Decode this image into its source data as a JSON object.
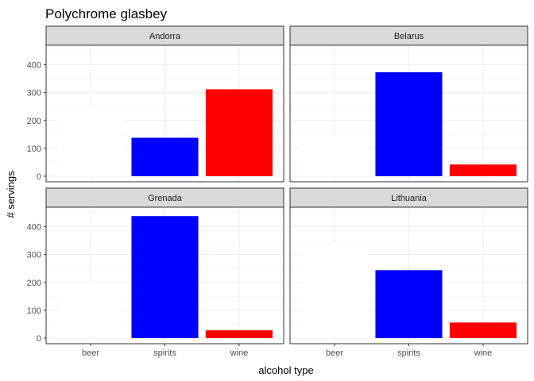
{
  "chart_data": {
    "type": "bar",
    "title": "Polychrome glasbey",
    "xlabel": "alcohol type",
    "ylabel": "# servings",
    "categories": [
      "beer",
      "spirits",
      "wine"
    ],
    "ylim": [
      -20,
      470
    ],
    "yticks": [
      0,
      100,
      200,
      300,
      400
    ],
    "grid": true,
    "colors": {
      "beer": "#FFFFFF",
      "spirits": "#0000FF",
      "wine": "#FF0000"
    },
    "panels": [
      {
        "name": "Andorra",
        "values": [
          245,
          138,
          312
        ]
      },
      {
        "name": "Belarus",
        "values": [
          142,
          373,
          42
        ]
      },
      {
        "name": "Grenada",
        "values": [
          199,
          438,
          28
        ]
      },
      {
        "name": "Lithuania",
        "values": [
          343,
          244,
          56
        ]
      }
    ]
  }
}
